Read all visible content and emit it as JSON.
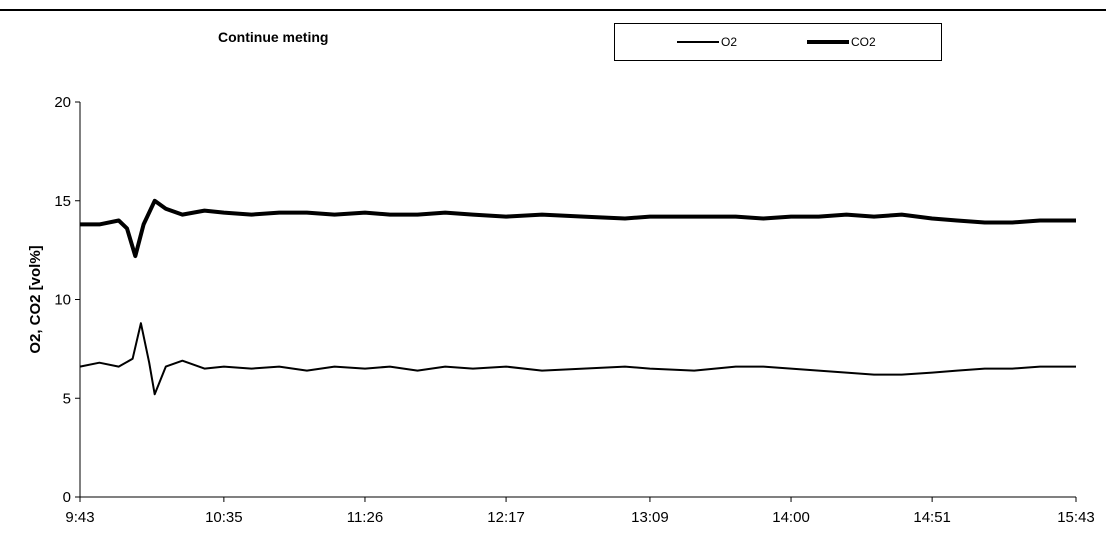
{
  "chart_data": {
    "type": "line",
    "title": "Continue meting",
    "xlabel": "",
    "ylabel": "O2, CO2 [vol%]",
    "ylim": [
      0,
      20
    ],
    "yticks": [
      "0",
      "5",
      "10",
      "15",
      "20"
    ],
    "xticks": [
      "9:43",
      "10:35",
      "11:26",
      "12:17",
      "13:09",
      "14:00",
      "14:51",
      "15:43"
    ],
    "grid": false,
    "legend_position": "top",
    "series": [
      {
        "name": "O2",
        "line_style": "thin",
        "color": "#000000",
        "points": [
          [
            "9:43",
            6.6
          ],
          [
            "9:50",
            6.8
          ],
          [
            "9:57",
            6.6
          ],
          [
            "10:02",
            7.0
          ],
          [
            "10:05",
            8.8
          ],
          [
            "10:08",
            6.8
          ],
          [
            "10:10",
            5.2
          ],
          [
            "10:14",
            6.6
          ],
          [
            "10:20",
            6.9
          ],
          [
            "10:28",
            6.5
          ],
          [
            "10:35",
            6.6
          ],
          [
            "10:45",
            6.5
          ],
          [
            "10:55",
            6.6
          ],
          [
            "11:05",
            6.4
          ],
          [
            "11:15",
            6.6
          ],
          [
            "11:26",
            6.5
          ],
          [
            "11:35",
            6.6
          ],
          [
            "11:45",
            6.4
          ],
          [
            "11:55",
            6.6
          ],
          [
            "12:05",
            6.5
          ],
          [
            "12:17",
            6.6
          ],
          [
            "12:30",
            6.4
          ],
          [
            "12:45",
            6.5
          ],
          [
            "13:00",
            6.6
          ],
          [
            "13:09",
            6.5
          ],
          [
            "13:25",
            6.4
          ],
          [
            "13:40",
            6.6
          ],
          [
            "13:50",
            6.6
          ],
          [
            "14:00",
            6.5
          ],
          [
            "14:10",
            6.4
          ],
          [
            "14:20",
            6.3
          ],
          [
            "14:30",
            6.2
          ],
          [
            "14:40",
            6.2
          ],
          [
            "14:51",
            6.3
          ],
          [
            "15:00",
            6.4
          ],
          [
            "15:10",
            6.5
          ],
          [
            "15:20",
            6.5
          ],
          [
            "15:30",
            6.6
          ],
          [
            "15:43",
            6.6
          ]
        ]
      },
      {
        "name": "CO2",
        "line_style": "thick",
        "color": "#000000",
        "points": [
          [
            "9:43",
            13.8
          ],
          [
            "9:50",
            13.8
          ],
          [
            "9:57",
            14.0
          ],
          [
            "10:00",
            13.6
          ],
          [
            "10:03",
            12.2
          ],
          [
            "10:06",
            13.8
          ],
          [
            "10:10",
            15.0
          ],
          [
            "10:14",
            14.6
          ],
          [
            "10:20",
            14.3
          ],
          [
            "10:28",
            14.5
          ],
          [
            "10:35",
            14.4
          ],
          [
            "10:45",
            14.3
          ],
          [
            "10:55",
            14.4
          ],
          [
            "11:05",
            14.4
          ],
          [
            "11:15",
            14.3
          ],
          [
            "11:26",
            14.4
          ],
          [
            "11:35",
            14.3
          ],
          [
            "11:45",
            14.3
          ],
          [
            "11:55",
            14.4
          ],
          [
            "12:05",
            14.3
          ],
          [
            "12:17",
            14.2
          ],
          [
            "12:30",
            14.3
          ],
          [
            "12:45",
            14.2
          ],
          [
            "13:00",
            14.1
          ],
          [
            "13:09",
            14.2
          ],
          [
            "13:25",
            14.2
          ],
          [
            "13:40",
            14.2
          ],
          [
            "13:50",
            14.1
          ],
          [
            "14:00",
            14.2
          ],
          [
            "14:10",
            14.2
          ],
          [
            "14:20",
            14.3
          ],
          [
            "14:30",
            14.2
          ],
          [
            "14:40",
            14.3
          ],
          [
            "14:51",
            14.1
          ],
          [
            "15:00",
            14.0
          ],
          [
            "15:10",
            13.9
          ],
          [
            "15:20",
            13.9
          ],
          [
            "15:30",
            14.0
          ],
          [
            "15:43",
            14.0
          ]
        ]
      }
    ]
  }
}
